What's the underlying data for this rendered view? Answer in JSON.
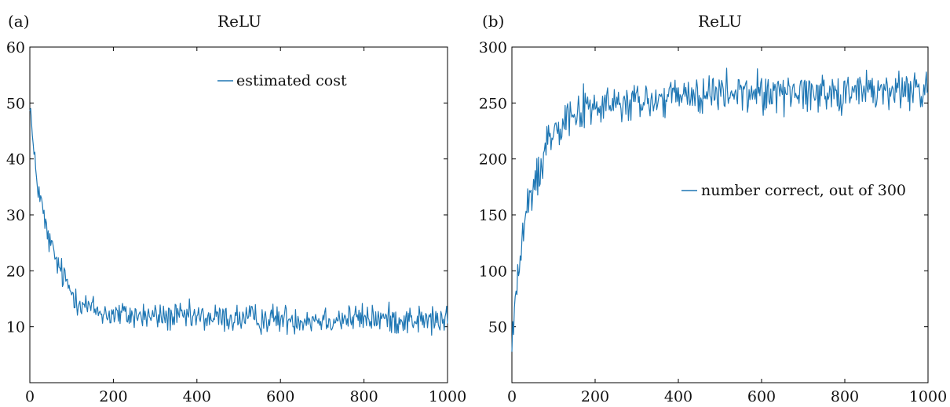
{
  "chart_data": [
    {
      "type": "line",
      "panel_label": "(a)",
      "title": "ReLU",
      "xlabel": "",
      "ylabel": "",
      "xlim": [
        0,
        1000
      ],
      "ylim": [
        0,
        60
      ],
      "x_ticks": [
        0,
        200,
        400,
        600,
        800,
        1000
      ],
      "y_ticks": [
        10,
        20,
        30,
        40,
        50,
        60
      ],
      "grid": false,
      "legend_position": "top-right",
      "color": "#1f77b4",
      "series": [
        {
          "name": "estimated cost",
          "x": [
            0,
            5,
            10,
            20,
            30,
            40,
            50,
            60,
            70,
            80,
            90,
            100,
            120,
            140,
            160,
            180,
            200,
            250,
            300,
            400,
            500,
            600,
            700,
            800,
            900,
            1000
          ],
          "y": [
            51,
            45,
            40,
            35,
            31,
            27,
            24.5,
            22.5,
            20.5,
            19,
            17.5,
            16.2,
            14.5,
            13.5,
            12.8,
            12.4,
            12.2,
            12,
            11.8,
            11.6,
            11.5,
            11.4,
            11.4,
            11.5,
            11.3,
            11
          ]
        }
      ]
    },
    {
      "type": "line",
      "panel_label": "(b)",
      "title": "ReLU",
      "xlabel": "",
      "ylabel": "",
      "xlim": [
        0,
        1000
      ],
      "ylim": [
        0,
        300
      ],
      "x_ticks": [
        0,
        200,
        400,
        600,
        800,
        1000
      ],
      "y_ticks": [
        50,
        100,
        150,
        200,
        250,
        300
      ],
      "grid": false,
      "legend_position": "center-right",
      "color": "#1f77b4",
      "series": [
        {
          "name": "number correct, out of 300",
          "x": [
            0,
            5,
            10,
            20,
            30,
            40,
            50,
            60,
            70,
            80,
            90,
            100,
            120,
            140,
            160,
            180,
            200,
            250,
            300,
            400,
            500,
            600,
            700,
            800,
            900,
            1000
          ],
          "y": [
            30,
            60,
            85,
            110,
            140,
            160,
            170,
            182,
            195,
            210,
            220,
            228,
            236,
            241,
            243,
            245,
            246,
            248,
            250,
            255,
            258,
            259,
            260,
            260,
            261,
            262
          ]
        }
      ]
    }
  ]
}
